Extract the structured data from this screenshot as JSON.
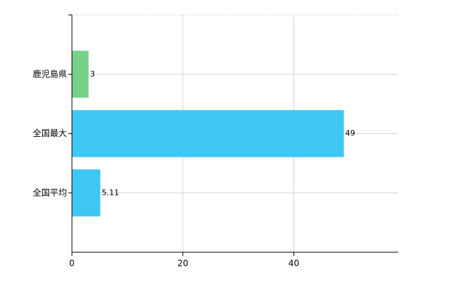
{
  "chart_data": {
    "type": "bar",
    "orientation": "horizontal",
    "categories": [
      "鹿児島県",
      "全国最大",
      "全国平均"
    ],
    "values": [
      3,
      49,
      5.11
    ],
    "colors": [
      "#77d18b",
      "#3ec6f5",
      "#3ec6f5"
    ],
    "xlim": [
      0,
      58.8
    ],
    "xticks": [
      0,
      20,
      40
    ],
    "grid": true
  }
}
